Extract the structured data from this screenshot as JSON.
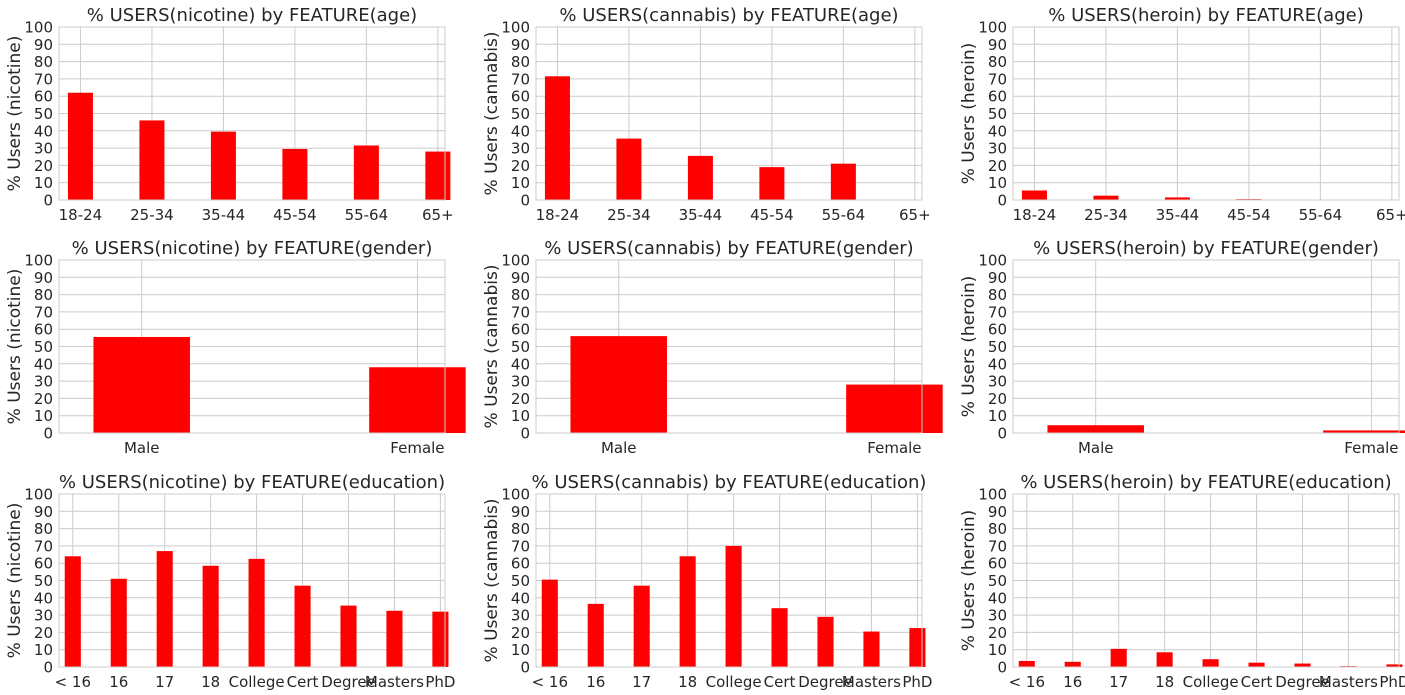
{
  "chart_data": [
    {
      "type": "bar",
      "title": "% USERS(nicotine) by FEATURE(age)",
      "ylabel": "% Users (nicotine)",
      "xlabel": "",
      "ylim": [
        0,
        100
      ],
      "grid": true,
      "categories": [
        "18-24",
        "25-34",
        "35-44",
        "45-54",
        "55-64",
        "65+"
      ],
      "values": [
        62,
        46,
        39.5,
        29.5,
        31.5,
        28
      ]
    },
    {
      "type": "bar",
      "title": "% USERS(cannabis) by FEATURE(age)",
      "ylabel": "% Users (cannabis)",
      "xlabel": "",
      "ylim": [
        0,
        100
      ],
      "grid": true,
      "categories": [
        "18-24",
        "25-34",
        "35-44",
        "45-54",
        "55-64",
        "65+"
      ],
      "values": [
        71.5,
        35.5,
        25.5,
        19,
        21,
        0
      ]
    },
    {
      "type": "bar",
      "title": "% USERS(heroin) by FEATURE(age)",
      "ylabel": "% Users (heroin)",
      "xlabel": "",
      "ylim": [
        0,
        100
      ],
      "grid": true,
      "categories": [
        "18-24",
        "25-34",
        "35-44",
        "45-54",
        "55-64",
        "65+"
      ],
      "values": [
        5.5,
        2.5,
        1.5,
        0.5,
        0,
        0
      ]
    },
    {
      "type": "bar",
      "title": "% USERS(nicotine) by FEATURE(gender)",
      "ylabel": "% Users (nicotine)",
      "xlabel": "",
      "ylim": [
        0,
        100
      ],
      "grid": true,
      "categories": [
        "Male",
        "Female"
      ],
      "values": [
        55.5,
        38
      ]
    },
    {
      "type": "bar",
      "title": "% USERS(cannabis) by FEATURE(gender)",
      "ylabel": "% Users (cannabis)",
      "xlabel": "",
      "ylim": [
        0,
        100
      ],
      "grid": true,
      "categories": [
        "Male",
        "Female"
      ],
      "values": [
        56,
        28
      ]
    },
    {
      "type": "bar",
      "title": "% USERS(heroin) by FEATURE(gender)",
      "ylabel": "% Users (heroin)",
      "xlabel": "",
      "ylim": [
        0,
        100
      ],
      "grid": true,
      "categories": [
        "Male",
        "Female"
      ],
      "values": [
        4.5,
        1.5
      ]
    },
    {
      "type": "bar",
      "title": "% USERS(nicotine) by FEATURE(education)",
      "ylabel": "% Users (nicotine)",
      "xlabel": "",
      "ylim": [
        0,
        100
      ],
      "grid": true,
      "categories": [
        "< 16",
        "16",
        "17",
        "18",
        "College",
        "Cert",
        "Degree",
        "Masters",
        "PhD"
      ],
      "values": [
        64,
        51,
        67,
        58.5,
        62.5,
        47,
        35.5,
        32.5,
        32
      ]
    },
    {
      "type": "bar",
      "title": "% USERS(cannabis) by FEATURE(education)",
      "ylabel": "% Users (cannabis)",
      "xlabel": "",
      "ylim": [
        0,
        100
      ],
      "grid": true,
      "categories": [
        "< 16",
        "16",
        "17",
        "18",
        "College",
        "Cert",
        "Degree",
        "Masters",
        "PhD"
      ],
      "values": [
        50.5,
        36.5,
        47,
        64,
        70,
        34,
        29,
        20.5,
        22.5
      ]
    },
    {
      "type": "bar",
      "title": "% USERS(heroin) by FEATURE(education)",
      "ylabel": "% Users (heroin)",
      "xlabel": "",
      "ylim": [
        0,
        100
      ],
      "grid": true,
      "categories": [
        "< 16",
        "16",
        "17",
        "18",
        "College",
        "Cert",
        "Degree",
        "Masters",
        "PhD"
      ],
      "values": [
        3.5,
        3,
        10.5,
        8.5,
        4.5,
        2.5,
        2,
        0.5,
        1.5
      ]
    }
  ],
  "style": {
    "bar_color": "#ff0000",
    "grid_color": "#cccccc",
    "text_color": "#262626"
  }
}
